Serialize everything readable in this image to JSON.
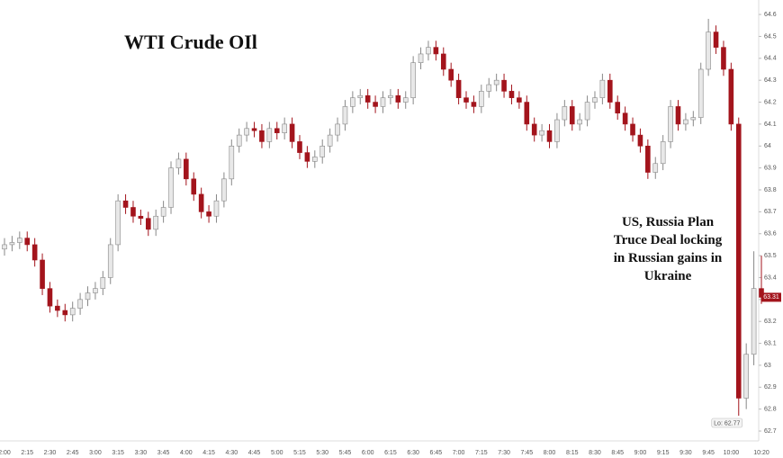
{
  "chart_data": {
    "type": "candlestick",
    "title": "WTI Crude OIl",
    "annotation": [
      "US, Russia Plan",
      "Truce Deal locking",
      "in Russian gains in",
      "Ukraine"
    ],
    "low_label": "Lo: 62.77",
    "last_price": 63.31,
    "up_color": "#e8e8e8",
    "down_color": "#a3141c",
    "categories": [
      "2:00",
      null,
      null,
      "2:15",
      null,
      null,
      "2:30",
      null,
      null,
      "2:45",
      null,
      null,
      "3:00",
      null,
      null,
      "3:15",
      null,
      null,
      "3:30",
      null,
      null,
      "3:45",
      null,
      null,
      "4:00",
      null,
      null,
      "4:15",
      null,
      null,
      "4:30",
      null,
      null,
      "4:45",
      null,
      null,
      "5:00",
      null,
      null,
      "5:15",
      null,
      null,
      "5:30",
      null,
      null,
      "5:45",
      null,
      null,
      "6:00",
      null,
      null,
      "6:15",
      null,
      null,
      "6:30",
      null,
      null,
      "6:45",
      null,
      null,
      "7:00",
      null,
      null,
      "7:15",
      null,
      null,
      "7:30",
      null,
      null,
      "7:45",
      null,
      null,
      "8:00",
      null,
      null,
      "8:15",
      null,
      null,
      "8:30",
      null,
      null,
      "8:45",
      null,
      null,
      "9:00",
      null,
      null,
      "9:15",
      null,
      null,
      "9:30",
      null,
      null,
      "9:45",
      null,
      null,
      "10:00",
      null,
      null,
      null,
      "10:20"
    ],
    "open": [
      63.53,
      63.55,
      63.56,
      63.58,
      63.55,
      63.48,
      63.35,
      63.27,
      63.25,
      63.23,
      63.26,
      63.3,
      63.33,
      63.35,
      63.4,
      63.55,
      63.75,
      63.72,
      63.68,
      63.67,
      63.62,
      63.68,
      63.72,
      63.9,
      63.94,
      63.85,
      63.78,
      63.7,
      63.68,
      63.75,
      63.85,
      64.0,
      64.05,
      64.08,
      64.07,
      64.02,
      64.08,
      64.06,
      64.1,
      64.02,
      63.97,
      63.93,
      63.95,
      64.0,
      64.05,
      64.1,
      64.18,
      64.22,
      64.23,
      64.2,
      64.18,
      64.22,
      64.23,
      64.2,
      64.22,
      64.38,
      64.42,
      64.45,
      64.42,
      64.35,
      64.3,
      64.22,
      64.2,
      64.18,
      64.25,
      64.28,
      64.3,
      64.25,
      64.22,
      64.2,
      64.1,
      64.05,
      64.07,
      64.02,
      64.12,
      64.18,
      64.1,
      64.12,
      64.2,
      64.22,
      64.3,
      64.2,
      64.15,
      64.1,
      64.05,
      64.0,
      63.88,
      63.92,
      64.02,
      64.18,
      64.1,
      64.12,
      64.13,
      64.35,
      64.52,
      64.45,
      64.35,
      64.1,
      62.85,
      63.05,
      63.35
    ],
    "high": [
      63.58,
      63.59,
      63.61,
      63.61,
      63.58,
      63.51,
      63.38,
      63.3,
      63.28,
      63.29,
      63.33,
      63.36,
      63.38,
      63.43,
      63.58,
      63.78,
      63.78,
      63.75,
      63.71,
      63.7,
      63.71,
      63.75,
      63.93,
      63.97,
      63.97,
      63.88,
      63.81,
      63.73,
      63.78,
      63.88,
      64.03,
      64.08,
      64.11,
      64.11,
      64.1,
      64.11,
      64.11,
      64.13,
      64.13,
      64.05,
      64.0,
      63.98,
      64.03,
      64.08,
      64.13,
      64.21,
      64.25,
      64.26,
      64.26,
      64.23,
      64.25,
      64.26,
      64.26,
      64.25,
      64.41,
      64.45,
      64.48,
      64.48,
      64.45,
      64.38,
      64.33,
      64.25,
      64.23,
      64.28,
      64.31,
      64.33,
      64.33,
      64.28,
      64.25,
      64.23,
      64.13,
      64.1,
      64.1,
      64.15,
      64.21,
      64.21,
      64.15,
      64.23,
      64.25,
      64.33,
      64.33,
      64.23,
      64.18,
      64.13,
      64.08,
      64.03,
      63.95,
      64.05,
      64.21,
      64.21,
      64.15,
      64.16,
      64.38,
      64.58,
      64.55,
      64.48,
      64.38,
      64.13,
      63.1,
      63.52,
      63.5
    ],
    "low": [
      63.5,
      63.52,
      63.53,
      63.52,
      63.45,
      63.32,
      63.24,
      63.22,
      63.2,
      63.2,
      63.23,
      63.27,
      63.3,
      63.32,
      63.37,
      63.52,
      63.69,
      63.65,
      63.64,
      63.59,
      63.59,
      63.65,
      63.69,
      63.87,
      63.82,
      63.75,
      63.67,
      63.65,
      63.65,
      63.72,
      63.82,
      63.97,
      64.02,
      64.04,
      63.99,
      63.99,
      64.03,
      64.03,
      63.99,
      63.94,
      63.9,
      63.9,
      63.92,
      63.97,
      64.02,
      64.07,
      64.15,
      64.19,
      64.17,
      64.15,
      64.15,
      64.19,
      64.17,
      64.17,
      64.19,
      64.35,
      64.39,
      64.39,
      64.32,
      64.27,
      64.19,
      64.17,
      64.15,
      64.15,
      64.22,
      64.25,
      64.22,
      64.19,
      64.17,
      64.07,
      64.02,
      64.02,
      63.99,
      63.99,
      64.09,
      64.07,
      64.07,
      64.09,
      64.17,
      64.19,
      64.17,
      64.12,
      64.07,
      64.02,
      63.97,
      63.85,
      63.85,
      63.89,
      63.99,
      64.07,
      64.07,
      64.09,
      64.1,
      64.32,
      64.42,
      64.32,
      64.07,
      62.77,
      62.8,
      63.0,
      63.28
    ],
    "close": [
      63.55,
      63.56,
      63.58,
      63.55,
      63.48,
      63.35,
      63.27,
      63.25,
      63.23,
      63.26,
      63.3,
      63.33,
      63.35,
      63.4,
      63.55,
      63.75,
      63.72,
      63.68,
      63.67,
      63.62,
      63.68,
      63.72,
      63.9,
      63.94,
      63.85,
      63.78,
      63.7,
      63.68,
      63.75,
      63.85,
      64.0,
      64.05,
      64.08,
      64.07,
      64.02,
      64.08,
      64.06,
      64.1,
      64.02,
      63.97,
      63.93,
      63.95,
      64.0,
      64.05,
      64.1,
      64.18,
      64.22,
      64.23,
      64.2,
      64.18,
      64.22,
      64.23,
      64.2,
      64.22,
      64.38,
      64.42,
      64.45,
      64.42,
      64.35,
      64.3,
      64.22,
      64.2,
      64.18,
      64.25,
      64.28,
      64.3,
      64.25,
      64.22,
      64.2,
      64.1,
      64.05,
      64.07,
      64.02,
      64.12,
      64.18,
      64.1,
      64.12,
      64.2,
      64.22,
      64.3,
      64.2,
      64.15,
      64.1,
      64.05,
      64.0,
      63.88,
      63.92,
      64.02,
      64.18,
      64.1,
      64.12,
      64.13,
      64.35,
      64.52,
      64.45,
      64.35,
      64.1,
      62.85,
      63.05,
      63.35,
      63.31
    ],
    "ylim": [
      62.655,
      64.666
    ],
    "yticks": [
      62.7,
      62.8,
      62.9,
      63,
      63.1,
      63.2,
      63.3,
      63.4,
      63.5,
      63.6,
      63.7,
      63.8,
      63.9,
      64,
      64.1,
      64.2,
      64.3,
      64.4,
      64.5,
      64.6
    ]
  }
}
